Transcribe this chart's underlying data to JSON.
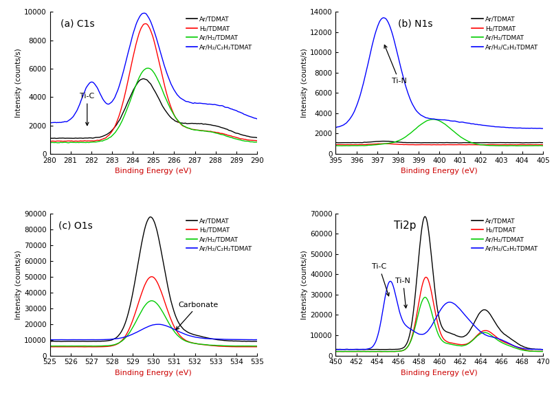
{
  "legend_labels": [
    "Ar/TDMAT",
    "H₂/TDMAT",
    "Ar/H₂/TDMAT",
    "Ar/H₂/C₂H₂TDMAT"
  ],
  "colors": [
    "black",
    "#FF0000",
    "#00CC00",
    "#0000FF"
  ],
  "panel_a": {
    "title": "(a) C1s",
    "xlabel": "Binding Energy (eV)",
    "ylabel": "Intensity (counts/s)",
    "xlim": [
      280,
      290
    ],
    "ylim": [
      0,
      10000
    ],
    "yticks": [
      0,
      2000,
      4000,
      6000,
      8000,
      10000
    ],
    "xticks": [
      280,
      281,
      282,
      283,
      284,
      285,
      286,
      287,
      288,
      289,
      290
    ]
  },
  "panel_b": {
    "title": "(b) N1s",
    "xlabel": "Binding Energy (eV)",
    "ylabel": "Intensity (counts/s)",
    "xlim": [
      395,
      405
    ],
    "ylim": [
      0,
      14000
    ],
    "yticks": [
      0,
      2000,
      4000,
      6000,
      8000,
      10000,
      12000,
      14000
    ],
    "xticks": [
      395,
      396,
      397,
      398,
      399,
      400,
      401,
      402,
      403,
      404,
      405
    ]
  },
  "panel_c": {
    "title": "(c) O1s",
    "xlabel": "Binding Energy (eV)",
    "ylabel": "Intensity (counts/s)",
    "xlim": [
      525,
      535
    ],
    "ylim": [
      0,
      90000
    ],
    "yticks": [
      0,
      10000,
      20000,
      30000,
      40000,
      50000,
      60000,
      70000,
      80000,
      90000
    ],
    "xticks": [
      525,
      526,
      527,
      528,
      529,
      530,
      531,
      532,
      533,
      534,
      535
    ]
  },
  "panel_d": {
    "title": "Ti2p",
    "xlabel": "Binding Energy (eV)",
    "ylabel": "Intensity (counts/s)",
    "xlim": [
      450,
      470
    ],
    "ylim": [
      0,
      70000
    ],
    "yticks": [
      0,
      10000,
      20000,
      30000,
      40000,
      50000,
      60000,
      70000
    ],
    "xticks": [
      450,
      452,
      454,
      456,
      458,
      460,
      462,
      464,
      466,
      468,
      470
    ]
  }
}
